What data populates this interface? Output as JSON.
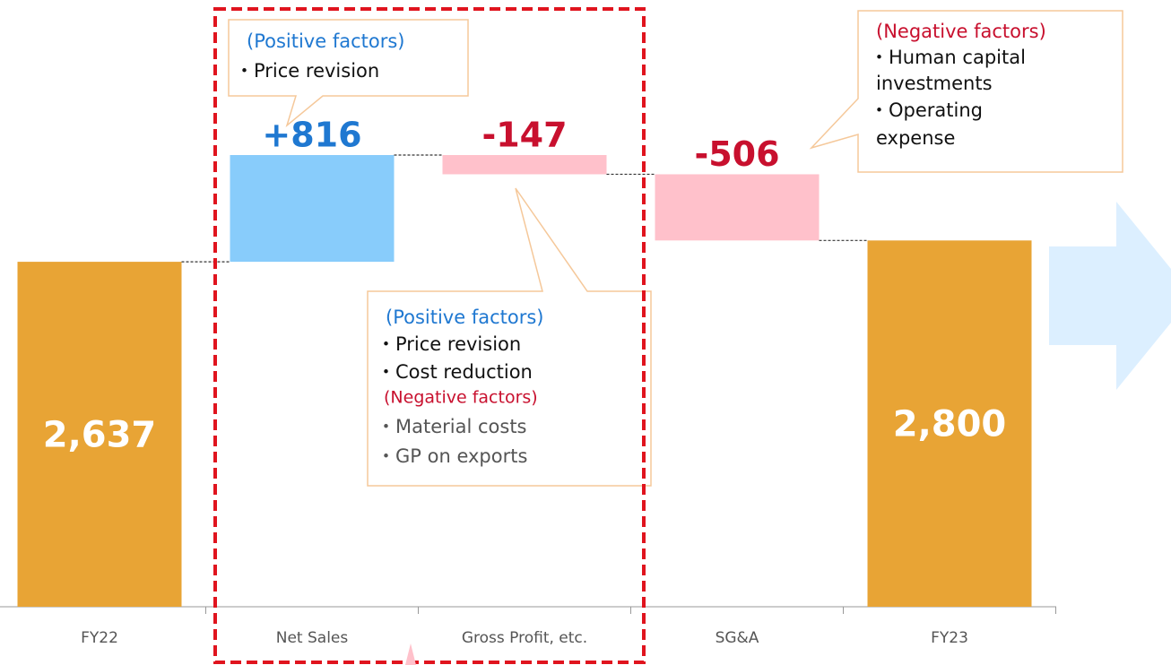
{
  "chart_data": {
    "type": "waterfall",
    "categories": [
      "FY22",
      "Net Sales",
      "Gross Profit, etc.",
      "SG&A",
      "FY23"
    ],
    "values": [
      2637,
      816,
      -147,
      -506,
      2800
    ],
    "value_labels": [
      "2,637",
      "+816",
      "-147",
      "-506",
      "2,800"
    ],
    "measures": [
      "absolute",
      "relative",
      "relative",
      "relative",
      "absolute"
    ],
    "colors": {
      "total": "#e8a435",
      "increase": "#88ccfb",
      "decrease": "#ffc1cb"
    },
    "label_colors": {
      "total": "#ffffff",
      "increase": "#1f78d1",
      "decrease": "#c8102e"
    },
    "annotations": [
      {
        "lines": [
          "(Positive factors)",
          "・Price revision"
        ]
      },
      {
        "lines": [
          "(Positive factors)",
          "・Price revision",
          "・Cost reduction",
          "(Negative factors)",
          "・Material costs",
          "・GP on exports"
        ]
      },
      {
        "lines": [
          "(Negative factors)",
          "・Human capital",
          "investments",
          "・Operating",
          "expense"
        ]
      }
    ]
  }
}
